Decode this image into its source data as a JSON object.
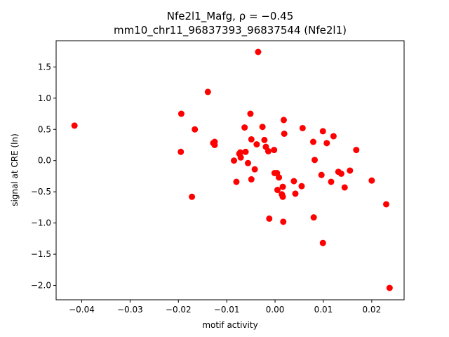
{
  "chart_data": {
    "type": "scatter",
    "title_line1": "Nfe2l1_Mafg, ρ = −0.45",
    "title_line2": "mm10_chr11_96837393_96837544 (Nfe2l1)",
    "xlabel": "motif activity",
    "ylabel": "signal at CRE (ln)",
    "xlim": [
      -0.0453,
      0.0267
    ],
    "ylim": [
      -2.23,
      1.92
    ],
    "xticks": [
      -0.04,
      -0.03,
      -0.02,
      -0.01,
      0.0,
      0.01,
      0.02
    ],
    "xtick_labels": [
      "−0.04",
      "−0.03",
      "−0.02",
      "−0.01",
      "0.00",
      "0.01",
      "0.02"
    ],
    "yticks": [
      -2.0,
      -1.5,
      -1.0,
      -0.5,
      0.0,
      0.5,
      1.0,
      1.5
    ],
    "ytick_labels": [
      "−2.0",
      "−1.5",
      "−1.0",
      "−0.5",
      "0.0",
      "0.5",
      "1.0",
      "1.5"
    ],
    "grid": false,
    "marker_color": "#ff0000",
    "points": [
      [
        -0.0415,
        0.56
      ],
      [
        -0.0194,
        0.75
      ],
      [
        -0.0195,
        0.14
      ],
      [
        -0.0166,
        0.5
      ],
      [
        -0.0172,
        -0.58
      ],
      [
        -0.0139,
        1.1
      ],
      [
        -0.0128,
        0.28
      ],
      [
        -0.0125,
        0.3
      ],
      [
        -0.0125,
        0.25
      ],
      [
        -0.0085,
        0.0
      ],
      [
        -0.008,
        -0.34
      ],
      [
        -0.0074,
        0.11
      ],
      [
        -0.0072,
        0.13
      ],
      [
        -0.0071,
        0.05
      ],
      [
        -0.0063,
        0.53
      ],
      [
        -0.0061,
        0.14
      ],
      [
        -0.0056,
        -0.04
      ],
      [
        -0.0051,
        0.75
      ],
      [
        -0.0049,
        0.34
      ],
      [
        -0.0049,
        -0.3
      ],
      [
        -0.0042,
        -0.14
      ],
      [
        -0.0038,
        0.26
      ],
      [
        -0.0035,
        1.74
      ],
      [
        -0.0026,
        0.54
      ],
      [
        -0.0022,
        0.33
      ],
      [
        -0.0019,
        0.22
      ],
      [
        -0.0014,
        0.15
      ],
      [
        -0.0012,
        -0.93
      ],
      [
        -0.0002,
        0.17
      ],
      [
        -0.0001,
        -0.2
      ],
      [
        0.0004,
        -0.2
      ],
      [
        0.0005,
        -0.47
      ],
      [
        0.0008,
        -0.27
      ],
      [
        0.0014,
        -0.54
      ],
      [
        0.0016,
        -0.58
      ],
      [
        0.0016,
        -0.42
      ],
      [
        0.0017,
        -0.98
      ],
      [
        0.0018,
        0.65
      ],
      [
        0.0019,
        0.43
      ],
      [
        0.0039,
        -0.33
      ],
      [
        0.0042,
        -0.53
      ],
      [
        0.0055,
        -0.41
      ],
      [
        0.0057,
        0.52
      ],
      [
        0.0079,
        0.3
      ],
      [
        0.008,
        -0.91
      ],
      [
        0.0082,
        0.01
      ],
      [
        0.0096,
        -0.23
      ],
      [
        0.0099,
        0.47
      ],
      [
        0.0099,
        -1.32
      ],
      [
        0.0107,
        0.28
      ],
      [
        0.0116,
        -0.34
      ],
      [
        0.0121,
        0.39
      ],
      [
        0.0131,
        -0.18
      ],
      [
        0.0137,
        -0.21
      ],
      [
        0.0144,
        -0.43
      ],
      [
        0.0155,
        -0.16
      ],
      [
        0.0168,
        0.17
      ],
      [
        0.02,
        -0.32
      ],
      [
        0.023,
        -0.7
      ],
      [
        0.0237,
        -2.04
      ]
    ]
  }
}
